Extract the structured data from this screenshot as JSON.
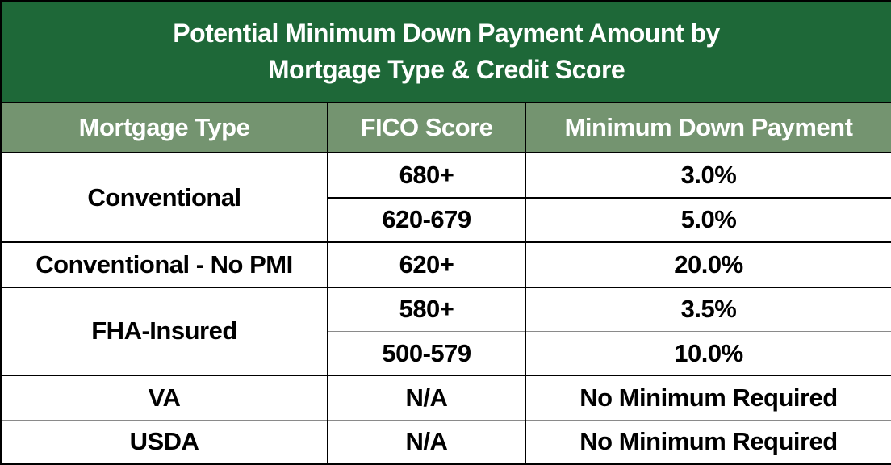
{
  "title": {
    "line1": "Potential Minimum Down Payment Amount by",
    "line2": "Mortgage Type & Credit Score"
  },
  "table": {
    "columns": [
      "Mortgage Type",
      "FICO Score",
      "Minimum Down Payment"
    ],
    "rows": [
      {
        "mortgage_type": "Conventional",
        "fico_score": "680+",
        "minimum_down_payment": "3.0%"
      },
      {
        "mortgage_type": "Conventional",
        "fico_score": "620-679",
        "minimum_down_payment": "5.0%"
      },
      {
        "mortgage_type": "Conventional - No PMI",
        "fico_score": "620+",
        "minimum_down_payment": "20.0%"
      },
      {
        "mortgage_type": "FHA-Insured",
        "fico_score": "580+",
        "minimum_down_payment": "3.5%"
      },
      {
        "mortgage_type": "FHA-Insured",
        "fico_score": "500-579",
        "minimum_down_payment": "10.0%"
      },
      {
        "mortgage_type": "VA",
        "fico_score": "N/A",
        "minimum_down_payment": "No Minimum Required"
      },
      {
        "mortgage_type": "USDA",
        "fico_score": "N/A",
        "minimum_down_payment": "No Minimum Required"
      }
    ]
  },
  "colors": {
    "title_bg": "#1e6838",
    "header_bg": "#749470",
    "border": "#000000",
    "light_border": "#8a8a8a",
    "title_text": "#ffffff",
    "header_text": "#ffffff",
    "body_text": "#000000",
    "body_bg": "#ffffff"
  },
  "chart_data": {
    "type": "table",
    "title": "Potential Minimum Down Payment Amount by Mortgage Type & Credit Score",
    "columns": [
      "Mortgage Type",
      "FICO Score",
      "Minimum Down Payment"
    ],
    "rows": [
      [
        "Conventional",
        "680+",
        "3.0%"
      ],
      [
        "Conventional",
        "620-679",
        "5.0%"
      ],
      [
        "Conventional - No PMI",
        "620+",
        "20.0%"
      ],
      [
        "FHA-Insured",
        "580+",
        "3.5%"
      ],
      [
        "FHA-Insured",
        "500-579",
        "10.0%"
      ],
      [
        "VA",
        "N/A",
        "No Minimum Required"
      ],
      [
        "USDA",
        "N/A",
        "No Minimum Required"
      ]
    ],
    "merged_cells": [
      {
        "column": "Mortgage Type",
        "value": "Conventional",
        "spans_rows": [
          0,
          1
        ]
      },
      {
        "column": "Mortgage Type",
        "value": "FHA-Insured",
        "spans_rows": [
          3,
          4
        ]
      }
    ]
  }
}
